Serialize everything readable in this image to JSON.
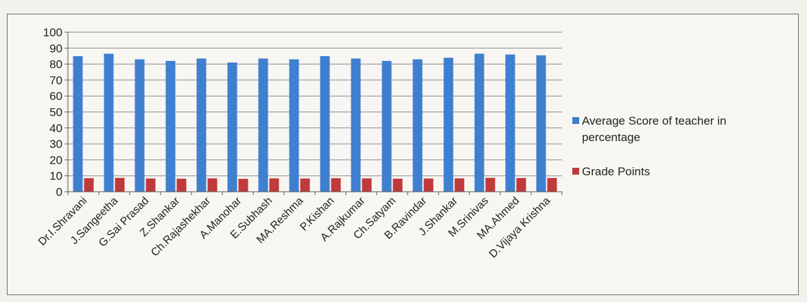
{
  "chart_data": {
    "type": "bar",
    "categories": [
      "Dr.I.Shravani",
      "J.Sangeetha",
      "G.Sai Prasad",
      "Z.Shankar",
      "Ch.Rajashekhar",
      "A.Manohar",
      "E.Subhash",
      "MA.Reshma",
      "P.Kishan",
      "A.Rajkumar",
      "Ch.Satyam",
      "B.Ravindar",
      "J.Shankar",
      "M.Srinivas",
      "MA.Ahmed",
      "D.Vijaya Krishna"
    ],
    "series": [
      {
        "name": "Average Score of teacher in percentage",
        "color": "#3f7fd0",
        "values": [
          85,
          86.5,
          83,
          82,
          83.5,
          81,
          83.5,
          83,
          85,
          83.5,
          82,
          83,
          84,
          86.5,
          86,
          85.5
        ]
      },
      {
        "name": "Grade Points",
        "color": "#c0393b",
        "values": [
          8.5,
          8.7,
          8.3,
          8.2,
          8.4,
          8.1,
          8.4,
          8.3,
          8.5,
          8.4,
          8.2,
          8.3,
          8.4,
          8.7,
          8.6,
          8.6
        ]
      }
    ],
    "yticks": [
      0,
      10,
      20,
      30,
      40,
      50,
      60,
      70,
      80,
      90,
      100
    ],
    "ylim": [
      0,
      100
    ],
    "grid": true,
    "legend_position": "right",
    "title": "",
    "xlabel": "",
    "ylabel": ""
  }
}
